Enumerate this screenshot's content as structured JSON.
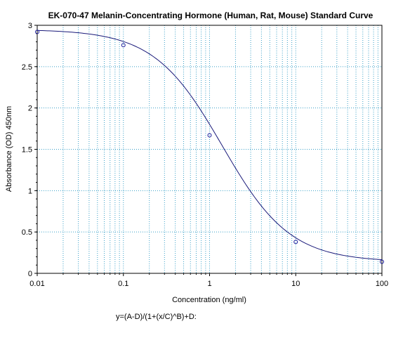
{
  "chart_data": {
    "type": "line",
    "title": "EK-070-47 Melanin-Concentrating Hormone (Human, Rat, Mouse) Standard Curve",
    "xlabel": "Concentration (ng/ml)",
    "ylabel": "Absorbance (OD) 450nm",
    "x_scale": "log",
    "xlim": [
      0.01,
      100
    ],
    "ylim": [
      0,
      3
    ],
    "x_tick_labels": [
      "0.01",
      "0.1",
      "1",
      "10",
      "100"
    ],
    "y_tick_labels": [
      "0",
      "0.5",
      "1",
      "1.5",
      "2",
      "2.5",
      "3"
    ],
    "grid": true,
    "series": [
      {
        "points": [
          {
            "x": 0.01,
            "y": 2.92
          },
          {
            "x": 0.1,
            "y": 2.76
          },
          {
            "x": 1,
            "y": 1.67
          },
          {
            "x": 10,
            "y": 0.38
          },
          {
            "x": 100,
            "y": 0.14
          }
        ],
        "fit": {
          "A": 2.95,
          "B": 1.1,
          "C": 1.4,
          "D": 0.14
        }
      }
    ],
    "equation": "y=(A-D)/(1+(x/C)^B)+D:"
  },
  "colors": {
    "grid": "#3aa0c8",
    "curve": "#1a1a7a",
    "marker": "#1a1a9a",
    "axis": "#000000"
  }
}
